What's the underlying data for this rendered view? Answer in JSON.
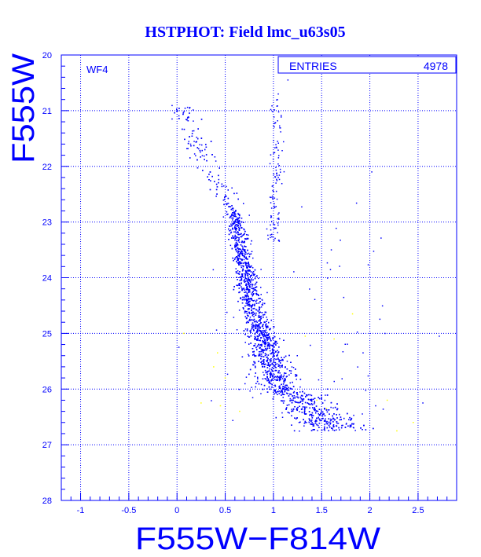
{
  "title": "HSTPHOT: Field lmc_u63s05",
  "chart_data": {
    "type": "scatter",
    "title": "HSTPHOT: Field lmc_u63s05",
    "xlabel": "F555W−F814W",
    "ylabel": "F555W",
    "xlim": [
      -1.2,
      2.9
    ],
    "ylim": [
      28,
      20
    ],
    "y_inverted": true,
    "grid": true,
    "x_ticks": [
      "-1",
      "-0.5",
      "0",
      "0.5",
      "1",
      "1.5",
      "2",
      "2.5"
    ],
    "y_ticks": [
      "20",
      "21",
      "22",
      "23",
      "24",
      "25",
      "26",
      "27",
      "28"
    ],
    "panel_label": "WF4",
    "stats": {
      "label": "ENTRIES",
      "value": "4978"
    },
    "colors": {
      "axes": "#0000ff",
      "main_sequence": "#0000ff",
      "faint_points": "#ffff00",
      "background": "#ffffff"
    },
    "population": {
      "ridge": [
        [
          21.0,
          0.07
        ],
        [
          21.5,
          0.17
        ],
        [
          22.0,
          0.33
        ],
        [
          22.5,
          0.52
        ],
        [
          23.0,
          0.62
        ],
        [
          23.5,
          0.66
        ],
        [
          24.0,
          0.72
        ],
        [
          24.5,
          0.78
        ],
        [
          25.0,
          0.87
        ],
        [
          25.5,
          0.97
        ],
        [
          26.0,
          1.08
        ],
        [
          26.4,
          1.25
        ],
        [
          26.7,
          1.45
        ]
      ],
      "red_clump_ridge": [
        [
          20.8,
          1.02
        ],
        [
          21.5,
          1.06
        ],
        [
          22.5,
          1.02
        ],
        [
          23.2,
          1.0
        ]
      ],
      "yellow_points": [
        [
          0.07,
          25.0
        ],
        [
          0.25,
          26.25
        ],
        [
          0.42,
          25.35
        ],
        [
          0.5,
          25.8
        ],
        [
          0.65,
          26.4
        ],
        [
          1.45,
          26.2
        ],
        [
          1.63,
          25.1
        ],
        [
          1.82,
          24.65
        ],
        [
          2.18,
          26.2
        ],
        [
          2.28,
          26.75
        ],
        [
          2.45,
          26.6
        ],
        [
          0.45,
          26.3
        ],
        [
          1.33,
          25.05
        ],
        [
          1.55,
          26.35
        ],
        [
          0.38,
          25.6
        ]
      ],
      "outliers": [
        [
          0.02,
          25.25
        ],
        [
          1.56,
          26.0
        ],
        [
          1.93,
          25.35
        ],
        [
          2.06,
          26.3
        ],
        [
          2.55,
          26.25
        ],
        [
          2.72,
          25.05
        ],
        [
          1.6,
          23.5
        ],
        [
          1.15,
          20.45
        ],
        [
          2.02,
          22.1
        ],
        [
          1.05,
          20.7
        ]
      ]
    }
  }
}
